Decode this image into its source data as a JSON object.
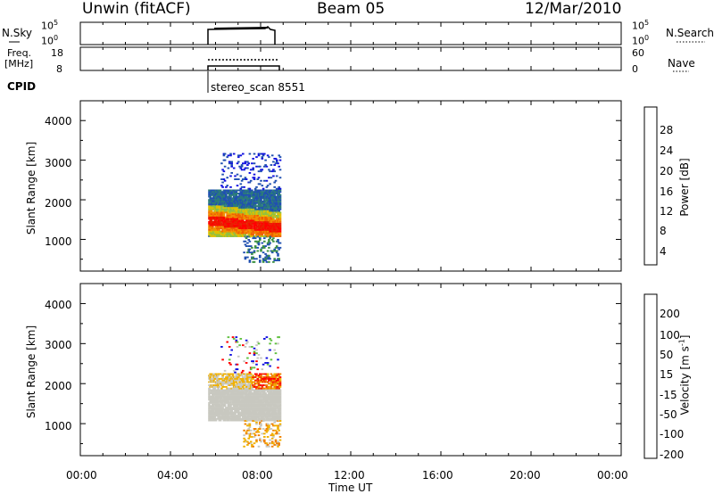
{
  "header": {
    "station": "Unwin (fitACF)",
    "beam": "Beam 05",
    "date": "12/Mar/2010"
  },
  "nsky_panel": {
    "label": "N.Sky",
    "ticks_left": [
      "10^5",
      "10^0"
    ],
    "ticks_right": [
      "10^5",
      "10^0"
    ],
    "right_label": "N.Search"
  },
  "freq_panel": {
    "label_line1": "Freq.",
    "label_line2": "[MHz]",
    "ticks_left": [
      "18",
      "8"
    ],
    "ticks_right": [
      "60",
      "0"
    ],
    "right_label": "Nave"
  },
  "cpid": {
    "label": "CPID",
    "program": "stereo_scan 8551"
  },
  "power_panel": {
    "ylabel": "Slant Range [km]",
    "yticks": [
      "4000",
      "3000",
      "2000",
      "1000"
    ],
    "colorbar_label": "Power [dB]",
    "colorbar_ticks": [
      "28",
      "24",
      "20",
      "16",
      "12",
      "8",
      "4"
    ],
    "colors": [
      "#1010e0",
      "#2050b0",
      "#2a7a7a",
      "#3a9040",
      "#90c040",
      "#e0c000",
      "#f09000",
      "#f06000",
      "#e82000",
      "#ff0000"
    ]
  },
  "velocity_panel": {
    "ylabel": "Slant Range [km]",
    "yticks": [
      "4000",
      "3000",
      "2000",
      "1000"
    ],
    "colorbar_label": "Velocity [m s^-1]",
    "colorbar_ticks": [
      "200",
      "100",
      "50",
      "15",
      "-15",
      "-50",
      "-100",
      "-200"
    ],
    "colors": [
      "#1010e0",
      "#2050b0",
      "#3a8a4a",
      "#60c040",
      "#c8c8c0",
      "#f0b000",
      "#f08000",
      "#f04000",
      "#ff0000"
    ]
  },
  "xaxis": {
    "ticks": [
      "00:00",
      "04:00",
      "08:00",
      "12:00",
      "16:00",
      "20:00",
      "00:00"
    ],
    "label": "Time UT"
  },
  "chart_data": {
    "type": "heatmap",
    "title": "Unwin (fitACF) Beam 05 12/Mar/2010",
    "xlabel": "Time UT",
    "xlim": [
      "00:00",
      "24:00"
    ],
    "ylabel": "Slant Range [km]",
    "ylim": [
      200,
      4500
    ],
    "data_interval_ut": [
      "05:40",
      "08:50"
    ],
    "series": [
      {
        "name": "Power",
        "unit": "dB",
        "colorbar_range": [
          0,
          32
        ],
        "peak_range_km": [
          1200,
          1700
        ],
        "echo_range_km": [
          1100,
          2300
        ]
      },
      {
        "name": "Velocity",
        "unit": "m s^-1",
        "colorbar_range": [
          -200,
          200
        ],
        "echo_range_km": [
          1100,
          2300
        ]
      }
    ]
  }
}
